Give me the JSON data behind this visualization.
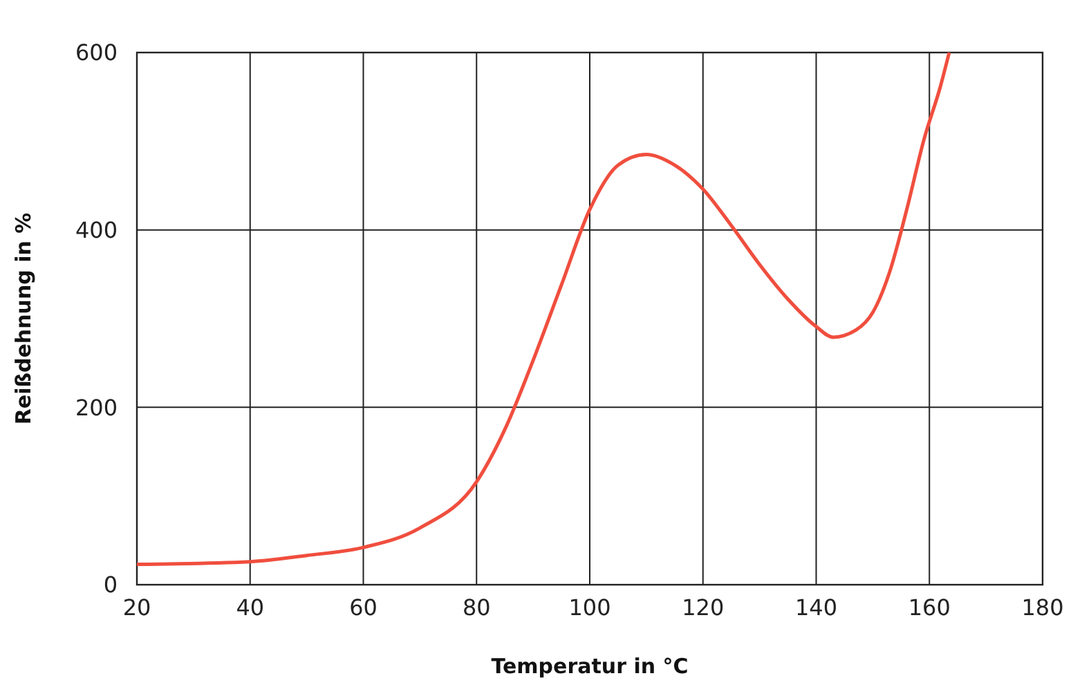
{
  "chart_data": {
    "type": "line",
    "xlabel": "Temperatur in °C",
    "ylabel": "Reißdehnung in %",
    "xlim": [
      20,
      180
    ],
    "xticks": [
      20,
      40,
      60,
      80,
      100,
      120,
      140,
      160,
      180
    ],
    "ylim": [
      0,
      600
    ],
    "yticks": [
      0,
      200,
      400,
      600
    ],
    "grid": true,
    "marker": "none",
    "line_style": "solid",
    "series": [
      {
        "color": "#f04e3e",
        "x": [
          20,
          40,
          50,
          60,
          70,
          80,
          85,
          90,
          95,
          100,
          105,
          110,
          115,
          120,
          125,
          130,
          135,
          140,
          143,
          147,
          150,
          153,
          156,
          159,
          162,
          163.5
        ],
        "values": [
          23,
          26,
          33,
          42,
          64,
          116,
          175,
          253,
          338,
          423,
          473,
          485,
          473,
          446,
          405,
          361,
          322,
          291,
          279,
          287,
          307,
          353,
          423,
          501,
          563,
          600
        ]
      }
    ]
  }
}
